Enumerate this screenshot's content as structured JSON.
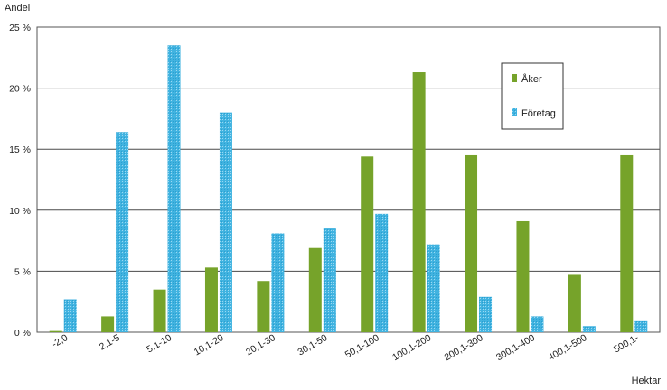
{
  "chart_data": {
    "type": "bar",
    "ylabel": "Andel",
    "xlabel": "Hektar",
    "ylim": [
      0,
      25
    ],
    "y_ticks": [
      0,
      5,
      10,
      15,
      20,
      25
    ],
    "y_tick_suffix": " %",
    "grid": true,
    "legend_position": "top-right",
    "categories": [
      "-2,0",
      "2,1-5",
      "5,1-10",
      "10,1-20",
      "20,1-30",
      "30,1-50",
      "50,1-100",
      "100,1-200",
      "200,1-300",
      "300,1-400",
      "400,1-500",
      "500,1-"
    ],
    "series": [
      {
        "name": "Åker",
        "color": "#76a32a",
        "values": [
          0.1,
          1.3,
          3.5,
          5.3,
          4.2,
          6.9,
          14.4,
          21.3,
          14.5,
          9.1,
          4.7,
          14.5
        ]
      },
      {
        "name": "Företag",
        "color": "#41b3e0",
        "values": [
          2.7,
          16.4,
          23.5,
          18.0,
          8.1,
          8.5,
          9.7,
          7.2,
          2.9,
          1.3,
          0.5,
          0.9
        ]
      }
    ]
  }
}
